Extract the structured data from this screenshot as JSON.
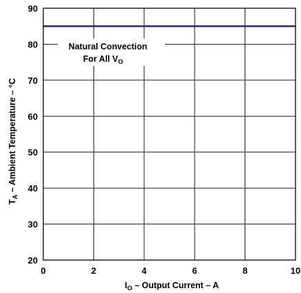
{
  "chart_data": {
    "type": "line",
    "x_label": {
      "main": "I",
      "sub": "O",
      "rest": " – Output Current – A"
    },
    "y_label": {
      "main": "T",
      "sub": "A",
      "rest": " – Ambient Temperature – °C"
    },
    "xlim": [
      0,
      10
    ],
    "ylim": [
      20,
      90
    ],
    "x_ticks": [
      "0",
      "2",
      "4",
      "6",
      "8",
      "10"
    ],
    "y_ticks": [
      "20",
      "30",
      "40",
      "50",
      "60",
      "70",
      "80",
      "90"
    ],
    "grid": true,
    "series": [
      {
        "x": [
          0,
          10
        ],
        "y": [
          85,
          85
        ],
        "color": "#2b2b7f"
      }
    ],
    "annotation": {
      "line1": "Natural Convection",
      "line2_main": "For All V",
      "line2_sub": "O"
    }
  }
}
